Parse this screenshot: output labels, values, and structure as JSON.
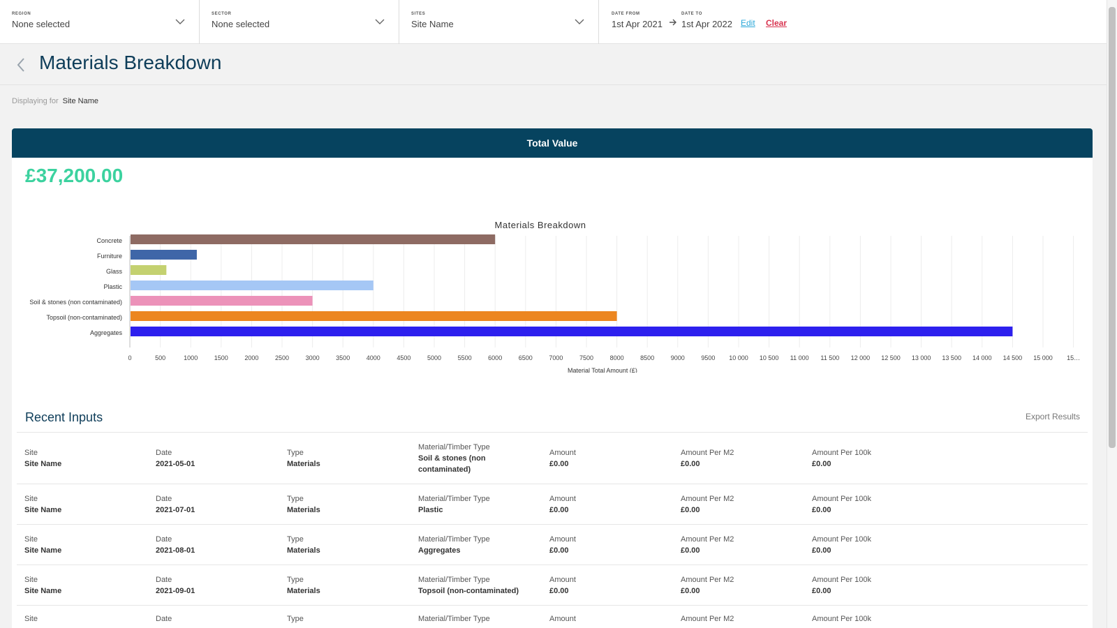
{
  "filters": [
    {
      "label": "REGION",
      "value": "None selected"
    },
    {
      "label": "SECTOR",
      "value": "None selected"
    },
    {
      "label": "SITES",
      "value": "Site Name"
    }
  ],
  "dates": {
    "from_label": "DATE FROM",
    "from_value": "1st Apr 2021",
    "to_label": "DATE TO",
    "to_value": "1st Apr 2022",
    "edit_label": "Edit",
    "clear_label": "Clear"
  },
  "header": {
    "title": "Materials Breakdown",
    "displaying_label": "Displaying for",
    "displaying_value": "Site Name"
  },
  "card": {
    "title": "Total Value",
    "total": "£37,200.00"
  },
  "chart_data": {
    "type": "bar",
    "orientation": "horizontal",
    "title": "Materials Breakdown",
    "xlabel": "Material Total Amount (£)",
    "ylabel": "",
    "categories": [
      "Concrete",
      "Furniture",
      "Glass",
      "Plastic",
      "Soil & stones (non contaminated)",
      "Topsoil (non-contaminated)",
      "Aggregates"
    ],
    "values": [
      6000,
      1100,
      600,
      4000,
      3000,
      8000,
      14500
    ],
    "colors": [
      "#8e6b63",
      "#3f66a8",
      "#c4d170",
      "#a5c7f5",
      "#ec92b9",
      "#ec8620",
      "#2d20ee"
    ],
    "xlim": [
      0,
      15500
    ],
    "ticks": [
      "0",
      "500",
      "1000",
      "1500",
      "2000",
      "2500",
      "3000",
      "3500",
      "4000",
      "4500",
      "5000",
      "5500",
      "6000",
      "6500",
      "7000",
      "7500",
      "8000",
      "8500",
      "9000",
      "9500",
      "10 000",
      "10 500",
      "11 000",
      "11 500",
      "12 000",
      "12 500",
      "13 000",
      "13 500",
      "14 000",
      "14 500",
      "15 000",
      "15…"
    ],
    "grid": true,
    "legend": "none"
  },
  "recent": {
    "title": "Recent Inputs",
    "export_label": "Export Results",
    "col_labels": [
      "Site",
      "Date",
      "Type",
      "Material/Timber Type",
      "Amount",
      "Amount Per M2",
      "Amount Per 100k"
    ],
    "rows": [
      [
        "Site Name",
        "2021-05-01",
        "Materials",
        "Soil & stones (non contaminated)",
        "£0.00",
        "£0.00",
        "£0.00"
      ],
      [
        "Site Name",
        "2021-07-01",
        "Materials",
        "Plastic",
        "£0.00",
        "£0.00",
        "£0.00"
      ],
      [
        "Site Name",
        "2021-08-01",
        "Materials",
        "Aggregates",
        "£0.00",
        "£0.00",
        "£0.00"
      ],
      [
        "Site Name",
        "2021-09-01",
        "Materials",
        "Topsoil (non-contaminated)",
        "£0.00",
        "£0.00",
        "£0.00"
      ],
      [
        "",
        "",
        "",
        "",
        "",
        "",
        ""
      ]
    ]
  }
}
